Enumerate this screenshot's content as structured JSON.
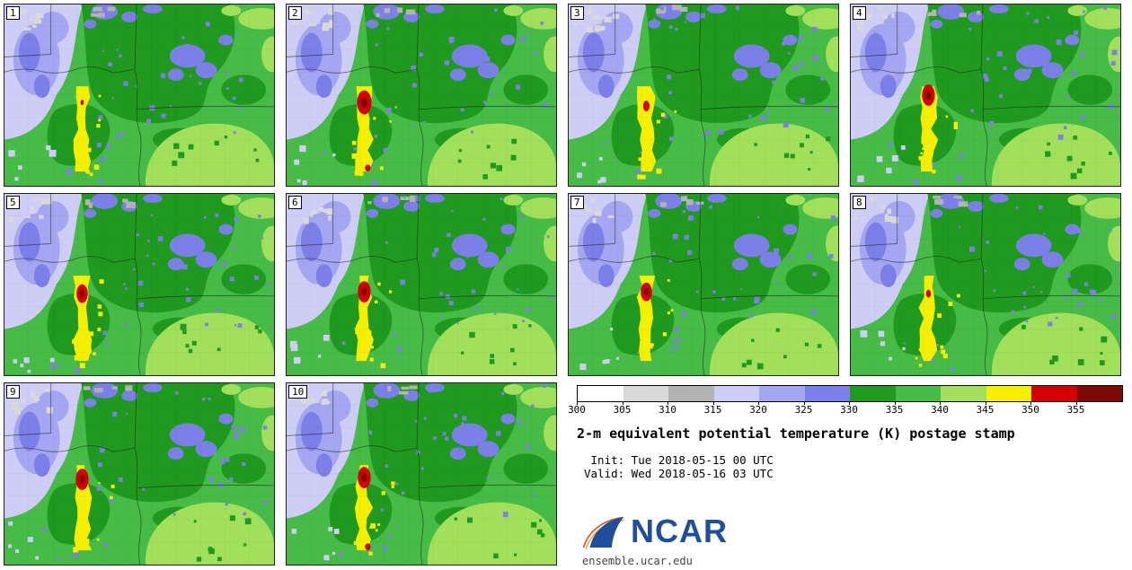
{
  "title": "2-m equivalent potential temperature (K) postage stamp",
  "init_line": " Init: Tue 2018-05-15 00 UTC",
  "valid_line": "Valid: Wed 2018-05-16 03 UTC",
  "branding": {
    "name": "NCAR",
    "site": "ensemble.ucar.edu"
  },
  "panels": [
    {
      "label": "1"
    },
    {
      "label": "2"
    },
    {
      "label": "3"
    },
    {
      "label": "4"
    },
    {
      "label": "5"
    },
    {
      "label": "6"
    },
    {
      "label": "7"
    },
    {
      "label": "8"
    },
    {
      "label": "9"
    },
    {
      "label": "10"
    }
  ],
  "colorbar": {
    "units": "K",
    "ticks": [
      "300",
      "305",
      "310",
      "315",
      "320",
      "325",
      "330",
      "335",
      "340",
      "345",
      "350",
      "355"
    ],
    "colors": [
      "#ffffff",
      "#d9d9d9",
      "#b3b3b3",
      "#cdcdf6",
      "#a5a6f1",
      "#7d7fe9",
      "#1f9a1f",
      "#46bb46",
      "#a2e05c",
      "#f7ef00",
      "#d40000",
      "#7c0a02"
    ]
  }
}
